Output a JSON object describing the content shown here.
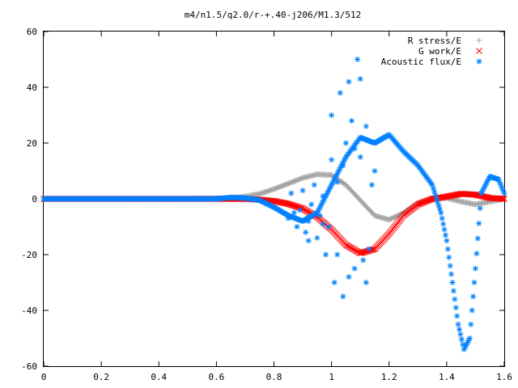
{
  "chart_data": {
    "type": "scatter",
    "title": "m4/n1.5/q2.0/r-+.40-j206/M1.3/512",
    "xlabel": "",
    "ylabel": "",
    "xlim": [
      0,
      1.6
    ],
    "ylim": [
      -60,
      60
    ],
    "x_ticks": [
      "0",
      "0.2",
      "0.4",
      "0.6",
      "0.8",
      "1",
      "1.2",
      "1.4",
      "1.6"
    ],
    "y_ticks": [
      "60",
      "40",
      "20",
      "0",
      "-20",
      "-40",
      "-60"
    ],
    "grid": false,
    "legend_position": "top-right",
    "series": [
      {
        "name": "R stress/E",
        "marker": "+",
        "color": "#a0a0a0",
        "x": [
          0.0,
          0.1,
          0.2,
          0.3,
          0.4,
          0.5,
          0.6,
          0.65,
          0.7,
          0.75,
          0.8,
          0.85,
          0.9,
          0.95,
          1.0,
          1.05,
          1.1,
          1.15,
          1.2,
          1.25,
          1.3,
          1.35,
          1.4,
          1.45,
          1.5,
          1.55,
          1.6
        ],
        "y": [
          0,
          0,
          0,
          0,
          0,
          0,
          0.1,
          0.3,
          0.8,
          1.8,
          3.5,
          5.5,
          7.5,
          8.8,
          8.5,
          5.0,
          -0.5,
          -6.0,
          -7.5,
          -5.0,
          -1.5,
          0.0,
          0.3,
          -1.0,
          -2.0,
          -1.0,
          0.0
        ]
      },
      {
        "name": "G work/E",
        "marker": "x",
        "color": "#ff0000",
        "x": [
          0.0,
          0.1,
          0.2,
          0.3,
          0.4,
          0.5,
          0.6,
          0.65,
          0.7,
          0.75,
          0.8,
          0.85,
          0.9,
          0.95,
          1.0,
          1.05,
          1.1,
          1.15,
          1.2,
          1.25,
          1.3,
          1.35,
          1.4,
          1.45,
          1.5,
          1.55,
          1.6
        ],
        "y": [
          0,
          0,
          0,
          0,
          0,
          0,
          0,
          0,
          0,
          -0.3,
          -0.8,
          -1.8,
          -3.5,
          -6.5,
          -11.0,
          -16.5,
          -19.5,
          -18.0,
          -12.5,
          -6.0,
          -2.0,
          0.0,
          0.8,
          1.8,
          1.5,
          0.3,
          0.0
        ]
      },
      {
        "name": "Acoustic flux/E",
        "marker": "*",
        "color": "#0080ff",
        "x": [
          0.0,
          0.1,
          0.2,
          0.3,
          0.4,
          0.5,
          0.6,
          0.65,
          0.7,
          0.75,
          0.8,
          0.85,
          0.9,
          0.95,
          1.0,
          1.05,
          1.1,
          1.15,
          1.2,
          1.25,
          1.3,
          1.35,
          1.38,
          1.4,
          1.42,
          1.44,
          1.46,
          1.48,
          1.5,
          1.52,
          1.55,
          1.58,
          1.6
        ],
        "y": [
          0,
          0,
          0,
          0,
          0,
          0,
          0,
          0.5,
          0.3,
          -0.5,
          -3,
          -6,
          -8,
          -5,
          5,
          15,
          22,
          20,
          23,
          17,
          12,
          5,
          -5,
          -15,
          -30,
          -45,
          -54,
          -50,
          -25,
          2,
          8,
          7,
          2
        ]
      },
      {
        "name": "",
        "marker": "*",
        "color": "#0080ff",
        "x": [
          0.85,
          0.86,
          0.88,
          0.89,
          0.9,
          0.91,
          0.92,
          0.93,
          0.94,
          0.95,
          0.96,
          0.97,
          0.98,
          0.99,
          1.0,
          1.01,
          1.02,
          1.03,
          1.04,
          1.05,
          1.06,
          1.07,
          1.08,
          1.09,
          1.1,
          1.11,
          1.12,
          1.13,
          1.14,
          1.15,
          0.87,
          0.92,
          0.97,
          1.0,
          1.02,
          1.04,
          1.06,
          1.08,
          1.1,
          1.12
        ],
        "y": [
          -7,
          2,
          -10,
          -4,
          3,
          -12,
          -8,
          -2,
          5,
          -14,
          -6,
          1,
          -20,
          -10,
          14,
          -30,
          6,
          38,
          -35,
          20,
          42,
          28,
          -25,
          50,
          15,
          -22,
          26,
          -18,
          5,
          10,
          -5,
          -15,
          -9,
          30,
          -20,
          12,
          -28,
          18,
          43,
          -30
        ]
      }
    ]
  }
}
